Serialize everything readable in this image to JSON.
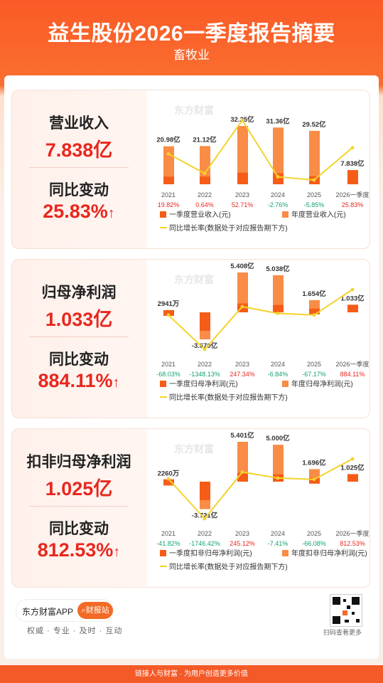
{
  "header": {
    "title": "益生股份2026一季度报告摘要",
    "subtitle": "畜牧业"
  },
  "colors": {
    "accent": "#f26a25",
    "primary_bar": "#f55c18",
    "annual_bar": "#f98c46",
    "line": "#f3d32b",
    "positive": "#e8271e",
    "negative": "#13a36b"
  },
  "cards": [
    {
      "metric": "营业收入",
      "value": "7.838亿",
      "change_label": "同比变动",
      "change_value": "25.83%",
      "arrow": "↑",
      "watermark": "东方财富"
    },
    {
      "metric": "归母净利润",
      "value": "1.033亿",
      "change_label": "同比变动",
      "change_value": "884.11%",
      "arrow": "↑",
      "watermark": "东方财富"
    },
    {
      "metric": "扣非归母净利润",
      "value": "1.025亿",
      "change_label": "同比变动",
      "change_value": "812.53%",
      "arrow": "↑",
      "watermark": "东方财富"
    }
  ],
  "chart_data": [
    {
      "type": "bar",
      "categories": [
        "2021",
        "2022",
        "2023",
        "2024",
        "2025",
        "2026一季度"
      ],
      "annual_values": [
        20.98,
        21.12,
        32.25,
        31.36,
        29.52,
        null
      ],
      "quarter_values": [
        4.2,
        4.2,
        6.4,
        6.1,
        4.4,
        7.838
      ],
      "annual_labels": [
        "20.98亿",
        "21.12亿",
        "32.25亿",
        "31.36亿",
        "29.52亿",
        "7.838亿"
      ],
      "growth": [
        "19.82%",
        "0.64%",
        "52.71%",
        "-2.76%",
        "-5.85%",
        "25.83%"
      ],
      "growth_values": [
        19.82,
        0.64,
        52.71,
        -2.76,
        -5.85,
        25.83
      ],
      "legend": [
        "一季度营业收入(元)",
        "年度营业收入(元)",
        "同比增长率(数据处于对应报告期下方)"
      ]
    },
    {
      "type": "bar",
      "categories": [
        "2021",
        "2022",
        "2023",
        "2024",
        "2025",
        "2026一季度"
      ],
      "annual_values": [
        0.2941,
        -3.67,
        5.408,
        5.038,
        1.654,
        null
      ],
      "quarter_values": [
        0.3,
        -2.5,
        1.2,
        1.0,
        0.5,
        1.033
      ],
      "annual_labels": [
        "2941万",
        "-3.670亿",
        "5.408亿",
        "5.038亿",
        "1.654亿",
        "1.033亿"
      ],
      "growth": [
        "-68.03%",
        "-1348.13%",
        "247.34%",
        "-6.84%",
        "-67.17%",
        "884.11%"
      ],
      "growth_values": [
        -68.03,
        -1348.13,
        247.34,
        -6.84,
        -67.17,
        884.11
      ],
      "legend": [
        "一季度归母净利润(元)",
        "年度归母净利润(元)",
        "同比增长率(数据处于对应报告期下方)"
      ]
    },
    {
      "type": "bar",
      "categories": [
        "2021",
        "2022",
        "2023",
        "2024",
        "2025",
        "2026一季度"
      ],
      "annual_values": [
        0.226,
        -3.721,
        5.401,
        5.0,
        1.696,
        null
      ],
      "quarter_values": [
        0.32,
        -2.5,
        1.2,
        1.0,
        0.5,
        1.025
      ],
      "annual_labels": [
        "2260万",
        "-3.721亿",
        "5.401亿",
        "5.000亿",
        "1.696亿",
        "1.025亿"
      ],
      "growth": [
        "-41.82%",
        "-1746.42%",
        "245.12%",
        "-7.41%",
        "-66.08%",
        "812.53%"
      ],
      "growth_values": [
        -41.82,
        -1746.42,
        245.12,
        -7.41,
        -66.08,
        812.53
      ],
      "legend": [
        "一季度扣非归母净利润(元)",
        "年度扣非归母净利润(元)",
        "同比增长率(数据处于对应报告期下方)"
      ]
    }
  ],
  "footer": {
    "app_name": "东方财富APP",
    "report_button": "财报站",
    "report_icon": "search-icon",
    "slogan": "权威 · 专业 · 及时 · 互动",
    "qr_text": "扫码查看更多",
    "bottom_text": "链接人与财富 · 为用户创造更多价值"
  }
}
